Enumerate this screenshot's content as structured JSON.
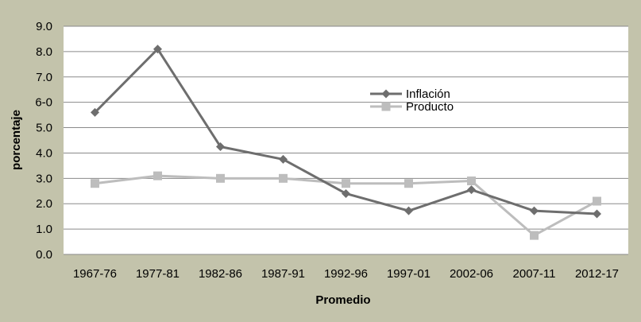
{
  "chart_data": {
    "type": "line",
    "title": "",
    "xlabel": "Promedio",
    "ylabel": "porcentaje",
    "categories": [
      "1967-76",
      "1977-81",
      "1982-86",
      "1987-91",
      "1992-96",
      "1997-01",
      "2002-06",
      "2007-11",
      "2012-17"
    ],
    "ylim": [
      0,
      9
    ],
    "yticks": [
      "0.0",
      "1.0",
      "2.0",
      "3.0",
      "4.0",
      "5.0",
      "6-0",
      "7.0",
      "8.0",
      "9.0"
    ],
    "grid": true,
    "legend_position": "upper-right inside plot",
    "series": [
      {
        "name": "Inflación",
        "marker": "diamond",
        "color": "#6e6e6e",
        "values": [
          5.6,
          8.1,
          4.25,
          3.75,
          2.4,
          1.72,
          2.55,
          1.72,
          1.6
        ]
      },
      {
        "name": "Producto",
        "marker": "square",
        "color": "#bdbdbd",
        "values": [
          2.8,
          3.1,
          3.0,
          3.0,
          2.8,
          2.8,
          2.9,
          0.75,
          2.1
        ]
      }
    ]
  },
  "colors": {
    "frame_background": "#c3c3ab",
    "plot_background": "#ffffff",
    "gridline": "#8a8a8a"
  }
}
